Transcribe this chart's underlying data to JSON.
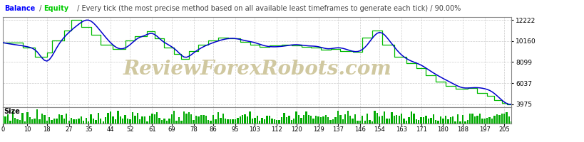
{
  "background_color": "#ffffff",
  "plot_bg_color": "#ffffff",
  "border_color": "#888888",
  "grid_color": "#cccccc",
  "balance_color": "#0000cc",
  "equity_color": "#00bb00",
  "bar_color": "#00aa00",
  "watermark_text": "ReviewForexRobots.com",
  "watermark_color": "#d0c8a0",
  "y_ticks": [
    3975,
    6037,
    8099,
    10160,
    12222
  ],
  "y_labels": [
    "3975",
    "6037",
    "8099",
    "10160",
    "12222"
  ],
  "x_ticks": [
    0,
    10,
    18,
    27,
    35,
    44,
    52,
    61,
    69,
    78,
    86,
    95,
    103,
    112,
    120,
    129,
    137,
    146,
    154,
    163,
    171,
    180,
    188,
    197,
    205
  ],
  "x_min": 0,
  "x_max": 208,
  "y_min": 3700,
  "y_max": 12500,
  "size_label": "Size",
  "n_points": 209,
  "balance_color_title": "#0000ff",
  "equity_color_title": "#00cc00"
}
